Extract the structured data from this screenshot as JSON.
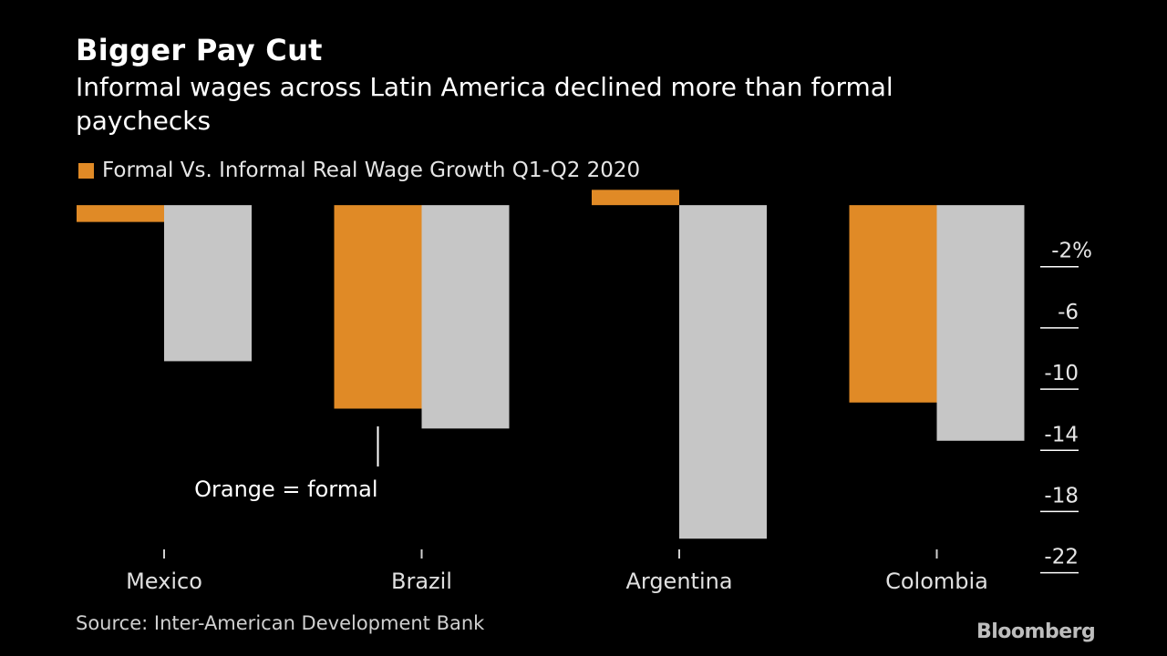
{
  "title": "Bigger Pay Cut",
  "subtitle": "Informal wages across Latin America declined more than formal paychecks",
  "source": "Source: Inter-American Development Bank",
  "logo": "Bloomberg",
  "annotation": "Orange = formal",
  "colors": {
    "formal": "#e08a26",
    "informal": "#c6c6c6",
    "background": "#000000"
  },
  "chart_data": {
    "type": "bar",
    "title": "Bigger Pay Cut",
    "subtitle": "Informal wages across Latin America declined more than formal paychecks",
    "categories": [
      "Mexico",
      "Brazil",
      "Argentina",
      "Colombia"
    ],
    "series": [
      {
        "name": "Formal Vs. Informal Real Wage Growth Q1-Q2 2020",
        "color": "#e08a26",
        "values": [
          -1.1,
          -13.3,
          1.0,
          -12.9
        ]
      },
      {
        "color": "#c6c6c6",
        "values": [
          -10.2,
          -14.6,
          -21.8,
          -15.4
        ]
      }
    ],
    "yticks": [
      -2,
      -6,
      -10,
      -14,
      -18,
      -22
    ],
    "ytick_labels": [
      "-2%",
      "-6",
      "-10",
      "-14",
      "-18",
      "-22"
    ],
    "ylim": [
      -22.5,
      1.2
    ],
    "axis_side": "right",
    "grid": false,
    "legend": "top-left"
  }
}
